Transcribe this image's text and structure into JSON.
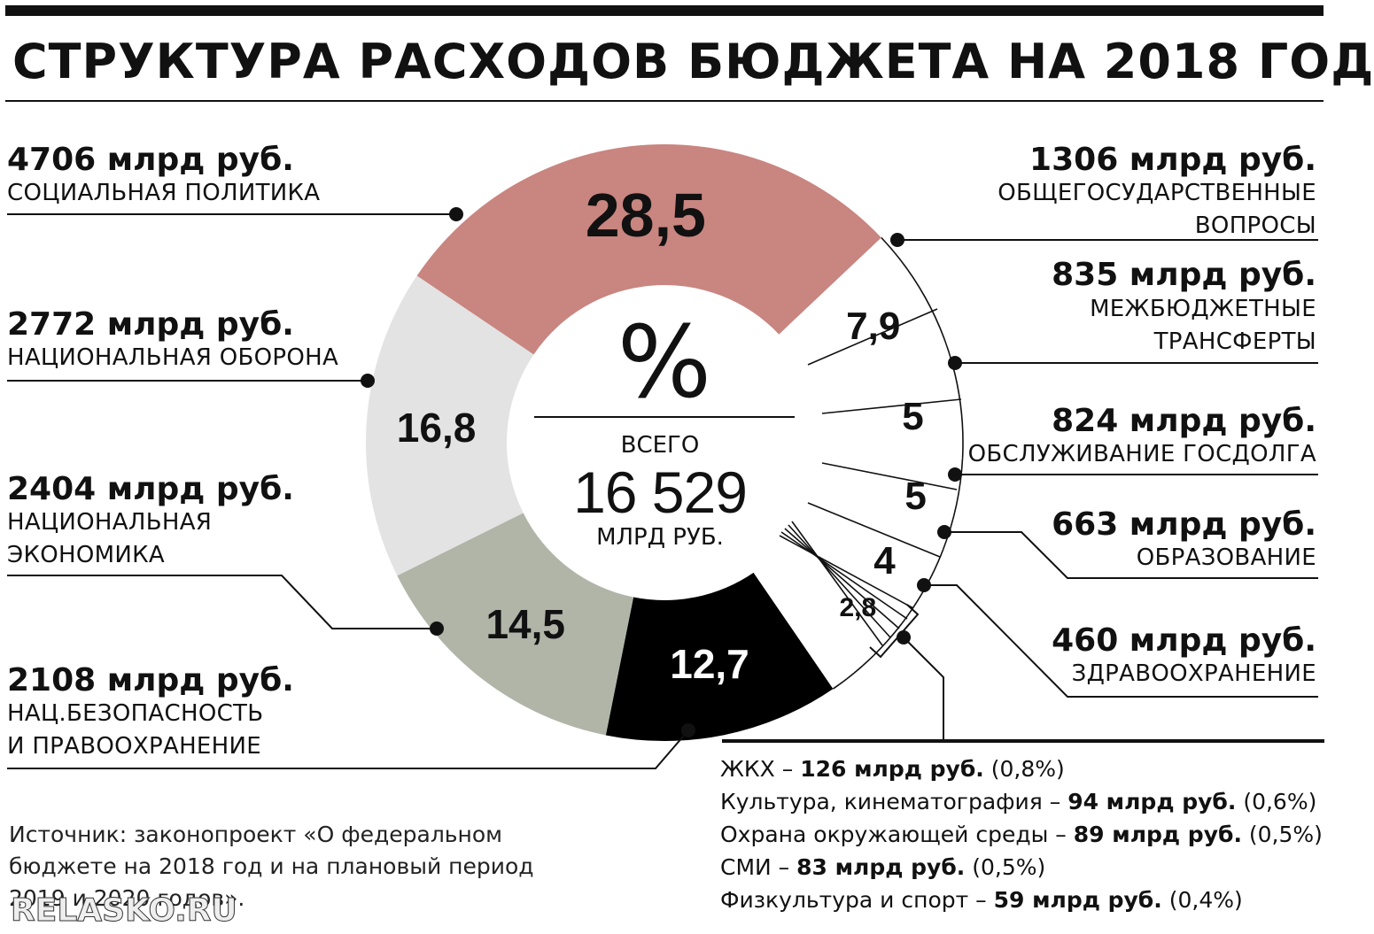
{
  "title": "СТРУКТУРА РАСХОДОВ БЮДЖЕТА НА 2018 ГОД",
  "center": {
    "symbol": "%",
    "label": "ВСЕГО",
    "total": "16 529",
    "unit": "МЛРД РУБ."
  },
  "chart_data": {
    "type": "pie",
    "total": 16529,
    "unit_center": "%",
    "slices": [
      {
        "display": "28,5",
        "value": 28.5,
        "amount": "4706 млрд руб.",
        "category": "СОЦИАЛЬНАЯ ПОЛИТИКА",
        "color": "#c98580"
      },
      {
        "display": "7,9",
        "value": 7.9,
        "amount": "1306 млрд руб.",
        "category": "ОБЩЕГОСУДАРСТВЕННЫЕ ВОПРОСЫ",
        "color": "#ffffff"
      },
      {
        "display": "5",
        "value": 5,
        "amount": "835 млрд руб.",
        "category": "МЕЖБЮДЖЕТНЫЕ ТРАНСФЕРТЫ",
        "color": "#ffffff"
      },
      {
        "display": "5",
        "value": 5,
        "amount": "824 млрд руб.",
        "category": "ОБСЛУЖИВАНИЕ ГОСДОЛГА",
        "color": "#ffffff"
      },
      {
        "display": "4",
        "value": 4,
        "amount": "663 млрд руб.",
        "category": "ОБРАЗОВАНИЕ",
        "color": "#ffffff"
      },
      {
        "display": "2,8",
        "value": 2.8,
        "amount": "460 млрд руб.",
        "category": "ЗДРАВООХРАНЕНИЕ",
        "color": "#ffffff"
      },
      {
        "display": "",
        "value": 0.8,
        "amount": "126 млрд руб.",
        "category": "ЖКХ",
        "color": "#ffffff"
      },
      {
        "display": "",
        "value": 0.6,
        "amount": "94 млрд руб.",
        "category": "Культура, кинематография",
        "color": "#ffffff"
      },
      {
        "display": "",
        "value": 0.5,
        "amount": "89 млрд руб.",
        "category": "Охрана окружающей среды",
        "color": "#ffffff"
      },
      {
        "display": "",
        "value": 0.5,
        "amount": "83 млрд руб.",
        "category": "СМИ",
        "color": "#ffffff"
      },
      {
        "display": "",
        "value": 0.4,
        "amount": "59 млрд руб.",
        "category": "Физкультура и спорт",
        "color": "#ffffff"
      },
      {
        "display": "12,7",
        "value": 12.7,
        "amount": "2108 млрд руб.",
        "category": "НАЦ.БЕЗОПАСНОСТЬ И ПРАВООХРАНЕНИЕ",
        "color": "#000000"
      },
      {
        "display": "14,5",
        "value": 14.5,
        "amount": "2404 млрд руб.",
        "category": "НАЦИОНАЛЬНАЯ ЭКОНОМИКА",
        "color": "#b1b5a8"
      },
      {
        "display": "16,8",
        "value": 16.8,
        "amount": "2772 млрд руб.",
        "category": "НАЦИОНАЛЬНАЯ ОБОРОНА",
        "color": "#e3e3e3"
      }
    ]
  },
  "labels": {
    "social": {
      "amount": "4706 млрд руб.",
      "line1": "СОЦИАЛЬНАЯ ПОЛИТИКА"
    },
    "defense": {
      "amount": "2772 млрд руб.",
      "line1": "НАЦИОНАЛЬНАЯ ОБОРОНА"
    },
    "economy": {
      "amount": "2404 млрд руб.",
      "line1": "НАЦИОНАЛЬНАЯ",
      "line2": "ЭКОНОМИКА"
    },
    "security": {
      "amount": "2108 млрд руб.",
      "line1": "НАЦ.БЕЗОПАСНОСТЬ",
      "line2": "И ПРАВООХРАНЕНИЕ"
    },
    "general": {
      "amount": "1306 млрд руб.",
      "line1": "ОБЩЕГОСУДАРСТВЕННЫЕ",
      "line2": "ВОПРОСЫ"
    },
    "transfers": {
      "amount": "835 млрд руб.",
      "line1": "МЕЖБЮДЖЕТНЫЕ",
      "line2": "ТРАНСФЕРТЫ"
    },
    "debt": {
      "amount": "824 млрд руб.",
      "line1": "ОБСЛУЖИВАНИЕ ГОСДОЛГА"
    },
    "education": {
      "amount": "663 млрд руб.",
      "line1": "ОБРАЗОВАНИЕ"
    },
    "health": {
      "amount": "460 млрд руб.",
      "line1": "ЗДРАВООХРАНЕНИЕ"
    }
  },
  "other_list": [
    {
      "name": "ЖКХ – ",
      "amount": "126 млрд руб.",
      "pct": " (0,8%)"
    },
    {
      "name": "Культура, кинематография – ",
      "amount": "94 млрд руб.",
      "pct": " (0,6%)"
    },
    {
      "name": "Охрана окружающей среды – ",
      "amount": "89 млрд руб.",
      "pct": " (0,5%)"
    },
    {
      "name": "СМИ – ",
      "amount": "83 млрд руб.",
      "pct": " (0,5%)"
    },
    {
      "name": "Физкультура и спорт – ",
      "amount": "59 млрд руб.",
      "pct": " (0,4%)"
    }
  ],
  "source": {
    "line1": "Источник: законопроект «О федеральном",
    "line2": "бюджете на 2018 год и на плановый период",
    "line3": "2019 и 2020 годов»."
  },
  "watermark": "RELASKO.RU"
}
